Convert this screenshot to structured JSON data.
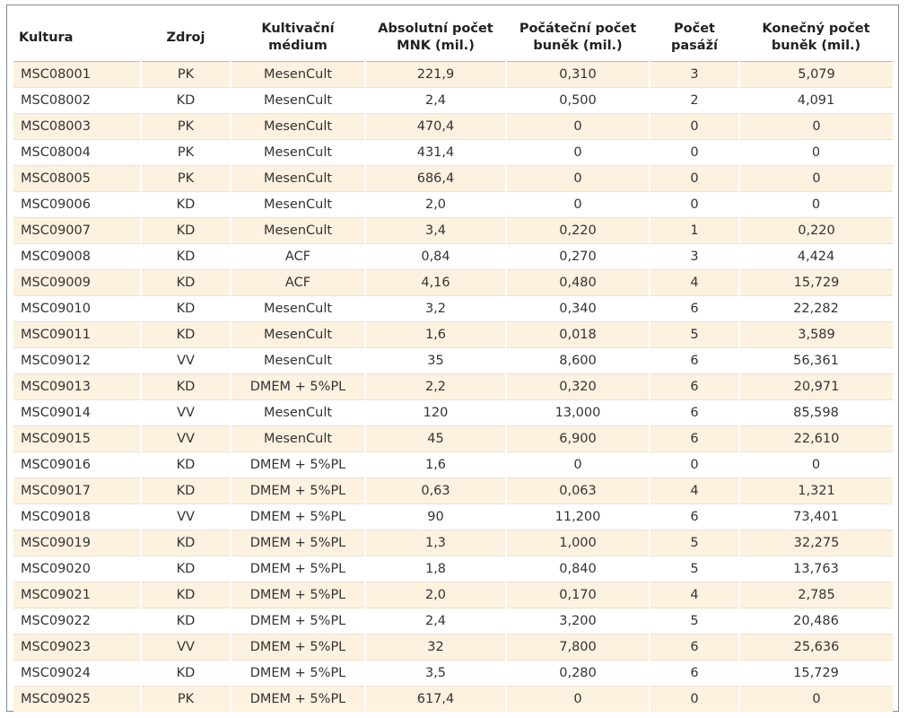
{
  "table": {
    "headers": [
      "Kultura",
      "Zdroj",
      "Kultivační médium",
      "Absolutní počet MNK (mil.)",
      "Počáteční počet buněk (mil.)",
      "Počet pasáží",
      "Konečný počet buněk (mil.)"
    ],
    "rows": [
      [
        "MSC08001",
        "PK",
        "MesenCult",
        "221,9",
        "0,310",
        "3",
        "5,079"
      ],
      [
        "MSC08002",
        "KD",
        "MesenCult",
        "2,4",
        "0,500",
        "2",
        "4,091"
      ],
      [
        "MSC08003",
        "PK",
        "MesenCult",
        "470,4",
        "0",
        "0",
        "0"
      ],
      [
        "MSC08004",
        "PK",
        "MesenCult",
        "431,4",
        "0",
        "0",
        "0"
      ],
      [
        "MSC08005",
        "PK",
        "MesenCult",
        "686,4",
        "0",
        "0",
        "0"
      ],
      [
        "MSC09006",
        "KD",
        "MesenCult",
        "2,0",
        "0",
        "0",
        "0"
      ],
      [
        "MSC09007",
        "KD",
        "MesenCult",
        "3,4",
        "0,220",
        "1",
        "0,220"
      ],
      [
        "MSC09008",
        "KD",
        "ACF",
        "0,84",
        "0,270",
        "3",
        "4,424"
      ],
      [
        "MSC09009",
        "KD",
        "ACF",
        "4,16",
        "0,480",
        "4",
        "15,729"
      ],
      [
        "MSC09010",
        "KD",
        "MesenCult",
        "3,2",
        "0,340",
        "6",
        "22,282"
      ],
      [
        "MSC09011",
        "KD",
        "MesenCult",
        "1,6",
        "0,018",
        "5",
        "3,589"
      ],
      [
        "MSC09012",
        "VV",
        "MesenCult",
        "35",
        "8,600",
        "6",
        "56,361"
      ],
      [
        "MSC09013",
        "KD",
        "DMEM + 5%PL",
        "2,2",
        "0,320",
        "6",
        "20,971"
      ],
      [
        "MSC09014",
        "VV",
        "MesenCult",
        "120",
        "13,000",
        "6",
        "85,598"
      ],
      [
        "MSC09015",
        "VV",
        "MesenCult",
        "45",
        "6,900",
        "6",
        "22,610"
      ],
      [
        "MSC09016",
        "KD",
        "DMEM + 5%PL",
        "1,6",
        "0",
        "0",
        "0"
      ],
      [
        "MSC09017",
        "KD",
        "DMEM + 5%PL",
        "0,63",
        "0,063",
        "4",
        "1,321"
      ],
      [
        "MSC09018",
        "VV",
        "DMEM + 5%PL",
        "90",
        "11,200",
        "6",
        "73,401"
      ],
      [
        "MSC09019",
        "KD",
        "DMEM + 5%PL",
        "1,3",
        "1,000",
        "5",
        "32,275"
      ],
      [
        "MSC09020",
        "KD",
        "DMEM + 5%PL",
        "1,8",
        "0,840",
        "5",
        "13,763"
      ],
      [
        "MSC09021",
        "KD",
        "DMEM + 5%PL",
        "2,0",
        "0,170",
        "4",
        "2,785"
      ],
      [
        "MSC09022",
        "KD",
        "DMEM + 5%PL",
        "2,4",
        "3,200",
        "5",
        "20,486"
      ],
      [
        "MSC09023",
        "VV",
        "DMEM + 5%PL",
        "32",
        "7,800",
        "6",
        "25,636"
      ],
      [
        "MSC09024",
        "KD",
        "DMEM + 5%PL",
        "3,5",
        "0,280",
        "6",
        "15,729"
      ],
      [
        "MSC09025",
        "PK",
        "DMEM + 5%PL",
        "617,4",
        "0",
        "0",
        "0"
      ]
    ]
  },
  "colors": {
    "stripe": "#fdf1df",
    "border": "#8a8a8a"
  }
}
